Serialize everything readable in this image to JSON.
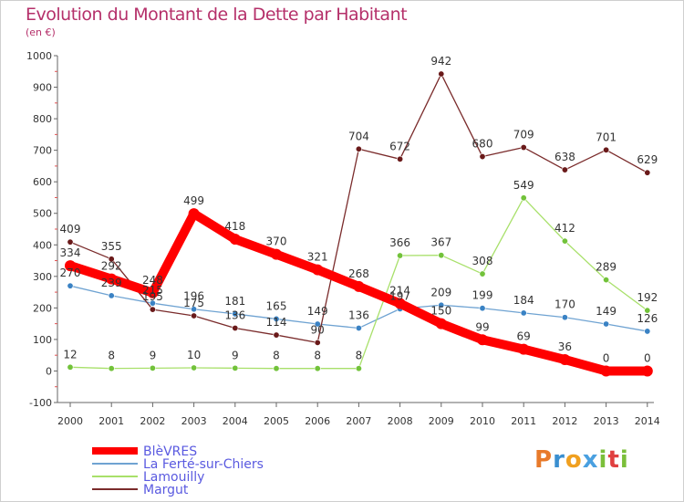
{
  "chart_data": {
    "type": "line",
    "title": "Evolution du Montant de la Dette par Habitant",
    "unit_label": "(en €)",
    "x": [
      "2000",
      "2001",
      "2002",
      "2003",
      "2004",
      "2005",
      "2006",
      "2007",
      "2008",
      "2009",
      "2010",
      "2011",
      "2012",
      "2013",
      "2014"
    ],
    "ylim": [
      -100,
      1000
    ],
    "yticks": [
      -100,
      0,
      100,
      200,
      300,
      400,
      500,
      600,
      700,
      800,
      900,
      1000
    ],
    "grid": false,
    "legend_position": "bottom-left",
    "series": [
      {
        "name": "BlèVRES",
        "color": "#ff0000",
        "values": [
          334,
          292,
          248,
          499,
          418,
          370,
          321,
          268,
          214,
          150,
          99,
          69,
          36,
          0,
          0
        ]
      },
      {
        "name": "La Ferté-sur-Chiers",
        "color": "#6fa3d2",
        "values": [
          270,
          239,
          215,
          196,
          181,
          165,
          149,
          136,
          197,
          209,
          199,
          184,
          170,
          149,
          126
        ]
      },
      {
        "name": "Lamouilly",
        "color": "#a8e06a",
        "values": [
          12,
          8,
          9,
          10,
          9,
          8,
          8,
          8,
          366,
          367,
          308,
          549,
          412,
          289,
          192
        ]
      },
      {
        "name": "Margut",
        "color": "#7a2b2b",
        "values": [
          409,
          355,
          195,
          175,
          136,
          114,
          90,
          704,
          672,
          942,
          680,
          709,
          638,
          701,
          629
        ]
      }
    ]
  },
  "logo": {
    "p": "P",
    "r": "r",
    "o": "o",
    "x": "x",
    "i": "i",
    "t": "t",
    "i2": "i"
  }
}
